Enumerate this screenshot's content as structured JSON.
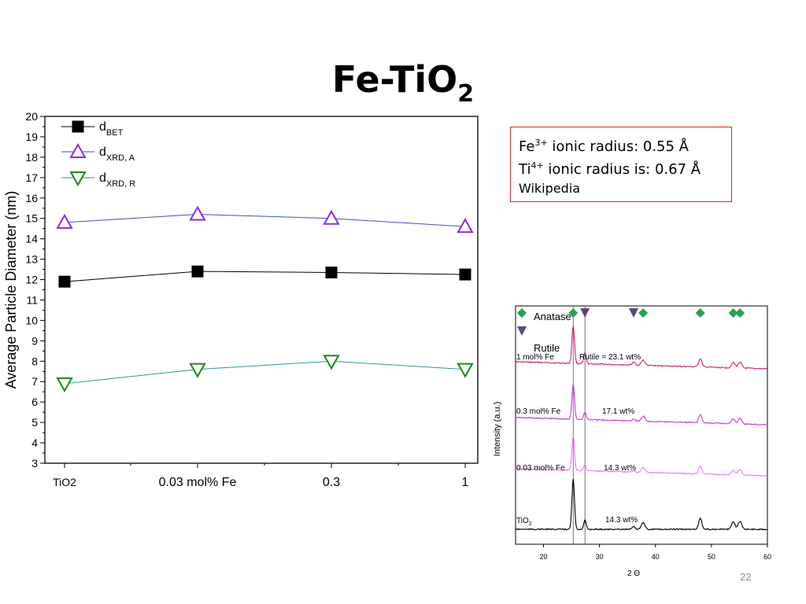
{
  "slide": {
    "title_main": "Fe-TiO",
    "title_sub": "2",
    "page_number": "22"
  },
  "info_box": {
    "line1_el": "Fe",
    "line1_sup": "3+",
    "line1_rest": " ionic radius: 0.55 Å",
    "line2_el": "Ti",
    "line2_sup": "4+",
    "line2_rest": " ionic radius is: 0.67 Å",
    "line3": "Wikipedia"
  },
  "colors": {
    "bet": "#000000",
    "xrd_a_marker": "#8a2be2",
    "xrd_a_line": "#3b4bdc",
    "xrd_r_marker": "#1a8a1a",
    "xrd_r_line": "#2a9a9a",
    "anatase_marker": "#1fa650",
    "rutile_marker": "#5e4a78",
    "xrd_1mol": "#d9227a",
    "xrd_03mol": "#cc3ad6",
    "xrd_003mol": "#ee7ef0",
    "xrd_tio2": "#000000"
  },
  "chart_data": [
    {
      "type": "line",
      "title": "",
      "xlabel": "",
      "ylabel": "Average Particle Diameter (nm)",
      "categories": [
        "TiO2",
        "0.03 mol% Fe",
        "0.3",
        "1"
      ],
      "ylim": [
        3,
        20
      ],
      "yticks": [
        3,
        4,
        5,
        6,
        7,
        8,
        9,
        10,
        11,
        12,
        13,
        14,
        15,
        16,
        17,
        18,
        19,
        20
      ],
      "legend_position": "top-left",
      "series": [
        {
          "key": "bet",
          "name_main": "d",
          "name_sub": "BET",
          "marker": "square",
          "values": [
            11.9,
            12.4,
            12.35,
            12.25
          ]
        },
        {
          "key": "xrd_a",
          "name_main": "d",
          "name_sub": "XRD, A",
          "marker": "triangle-up",
          "values": [
            14.8,
            15.2,
            15.0,
            14.6
          ]
        },
        {
          "key": "xrd_r",
          "name_main": "d",
          "name_sub": "XRD, R",
          "marker": "triangle-down",
          "values": [
            6.9,
            7.6,
            8.0,
            7.6
          ]
        }
      ]
    },
    {
      "type": "line",
      "title": "",
      "xlabel": "2 Θ",
      "ylabel": "Intensity (a.u.)",
      "xlim": [
        15,
        60
      ],
      "xticks": [
        20,
        30,
        40,
        50,
        60
      ],
      "legend": {
        "anatase": "Anatase",
        "rutile": "Rutile"
      },
      "anatase_peaks": [
        25.3,
        37.8,
        48.0,
        53.9,
        55.1
      ],
      "rutile_peaks": [
        27.4,
        36.1
      ],
      "reference_lines": [
        25.3,
        27.4
      ],
      "traces": [
        {
          "key": "xrd_1mol",
          "label": "1 mol% Fe",
          "annotation": "Rutile = 23.1 wt%"
        },
        {
          "key": "xrd_03mol",
          "label": "0.3 mol% Fe",
          "annotation": "17.1 wt%"
        },
        {
          "key": "xrd_003mol",
          "label": "0.03 mol% Fe",
          "annotation": "14.3 wt%"
        },
        {
          "key": "xrd_tio2",
          "label_main": "TiO",
          "label_sub": "2",
          "annotation": "14.3 wt%"
        }
      ]
    }
  ]
}
